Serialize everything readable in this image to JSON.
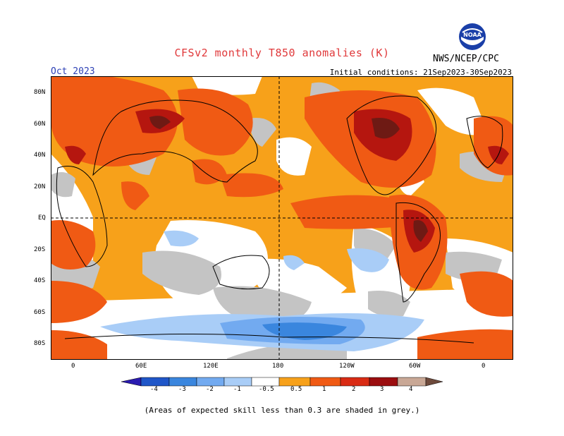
{
  "header": {
    "title": "CFSv2 monthly T850 anomalies (K)",
    "agency": "NWS/NCEP/CPC",
    "month": "Oct 2023",
    "initial_conditions": "Initial conditions: 21Sep2023-30Sep2023",
    "logo_text": "NOAA"
  },
  "map": {
    "lat_labels": [
      "80N",
      "60N",
      "40N",
      "20N",
      "EQ",
      "20S",
      "40S",
      "60S",
      "80S"
    ],
    "lon_labels": [
      "0",
      "60E",
      "120E",
      "180",
      "120W",
      "60W",
      "0"
    ],
    "shading_note": "Areas of expected skill less than 0.3 are shaded in grey."
  },
  "legend": {
    "tick_labels": [
      "-4",
      "-3",
      "-2",
      "-1",
      "-0.5",
      "0.5",
      "1",
      "2",
      "3",
      "4"
    ],
    "colors": [
      "#2a1bb0",
      "#1f56c8",
      "#3a86de",
      "#72aaf0",
      "#a9cdf7",
      "#ffffff",
      "#f7a11a",
      "#f05a14",
      "#d92b14",
      "#9b0d0f",
      "#c9a896",
      "#6e4a3c"
    ]
  },
  "footnote": "(Areas of expected skill less than 0.3 are shaded in grey.)"
}
